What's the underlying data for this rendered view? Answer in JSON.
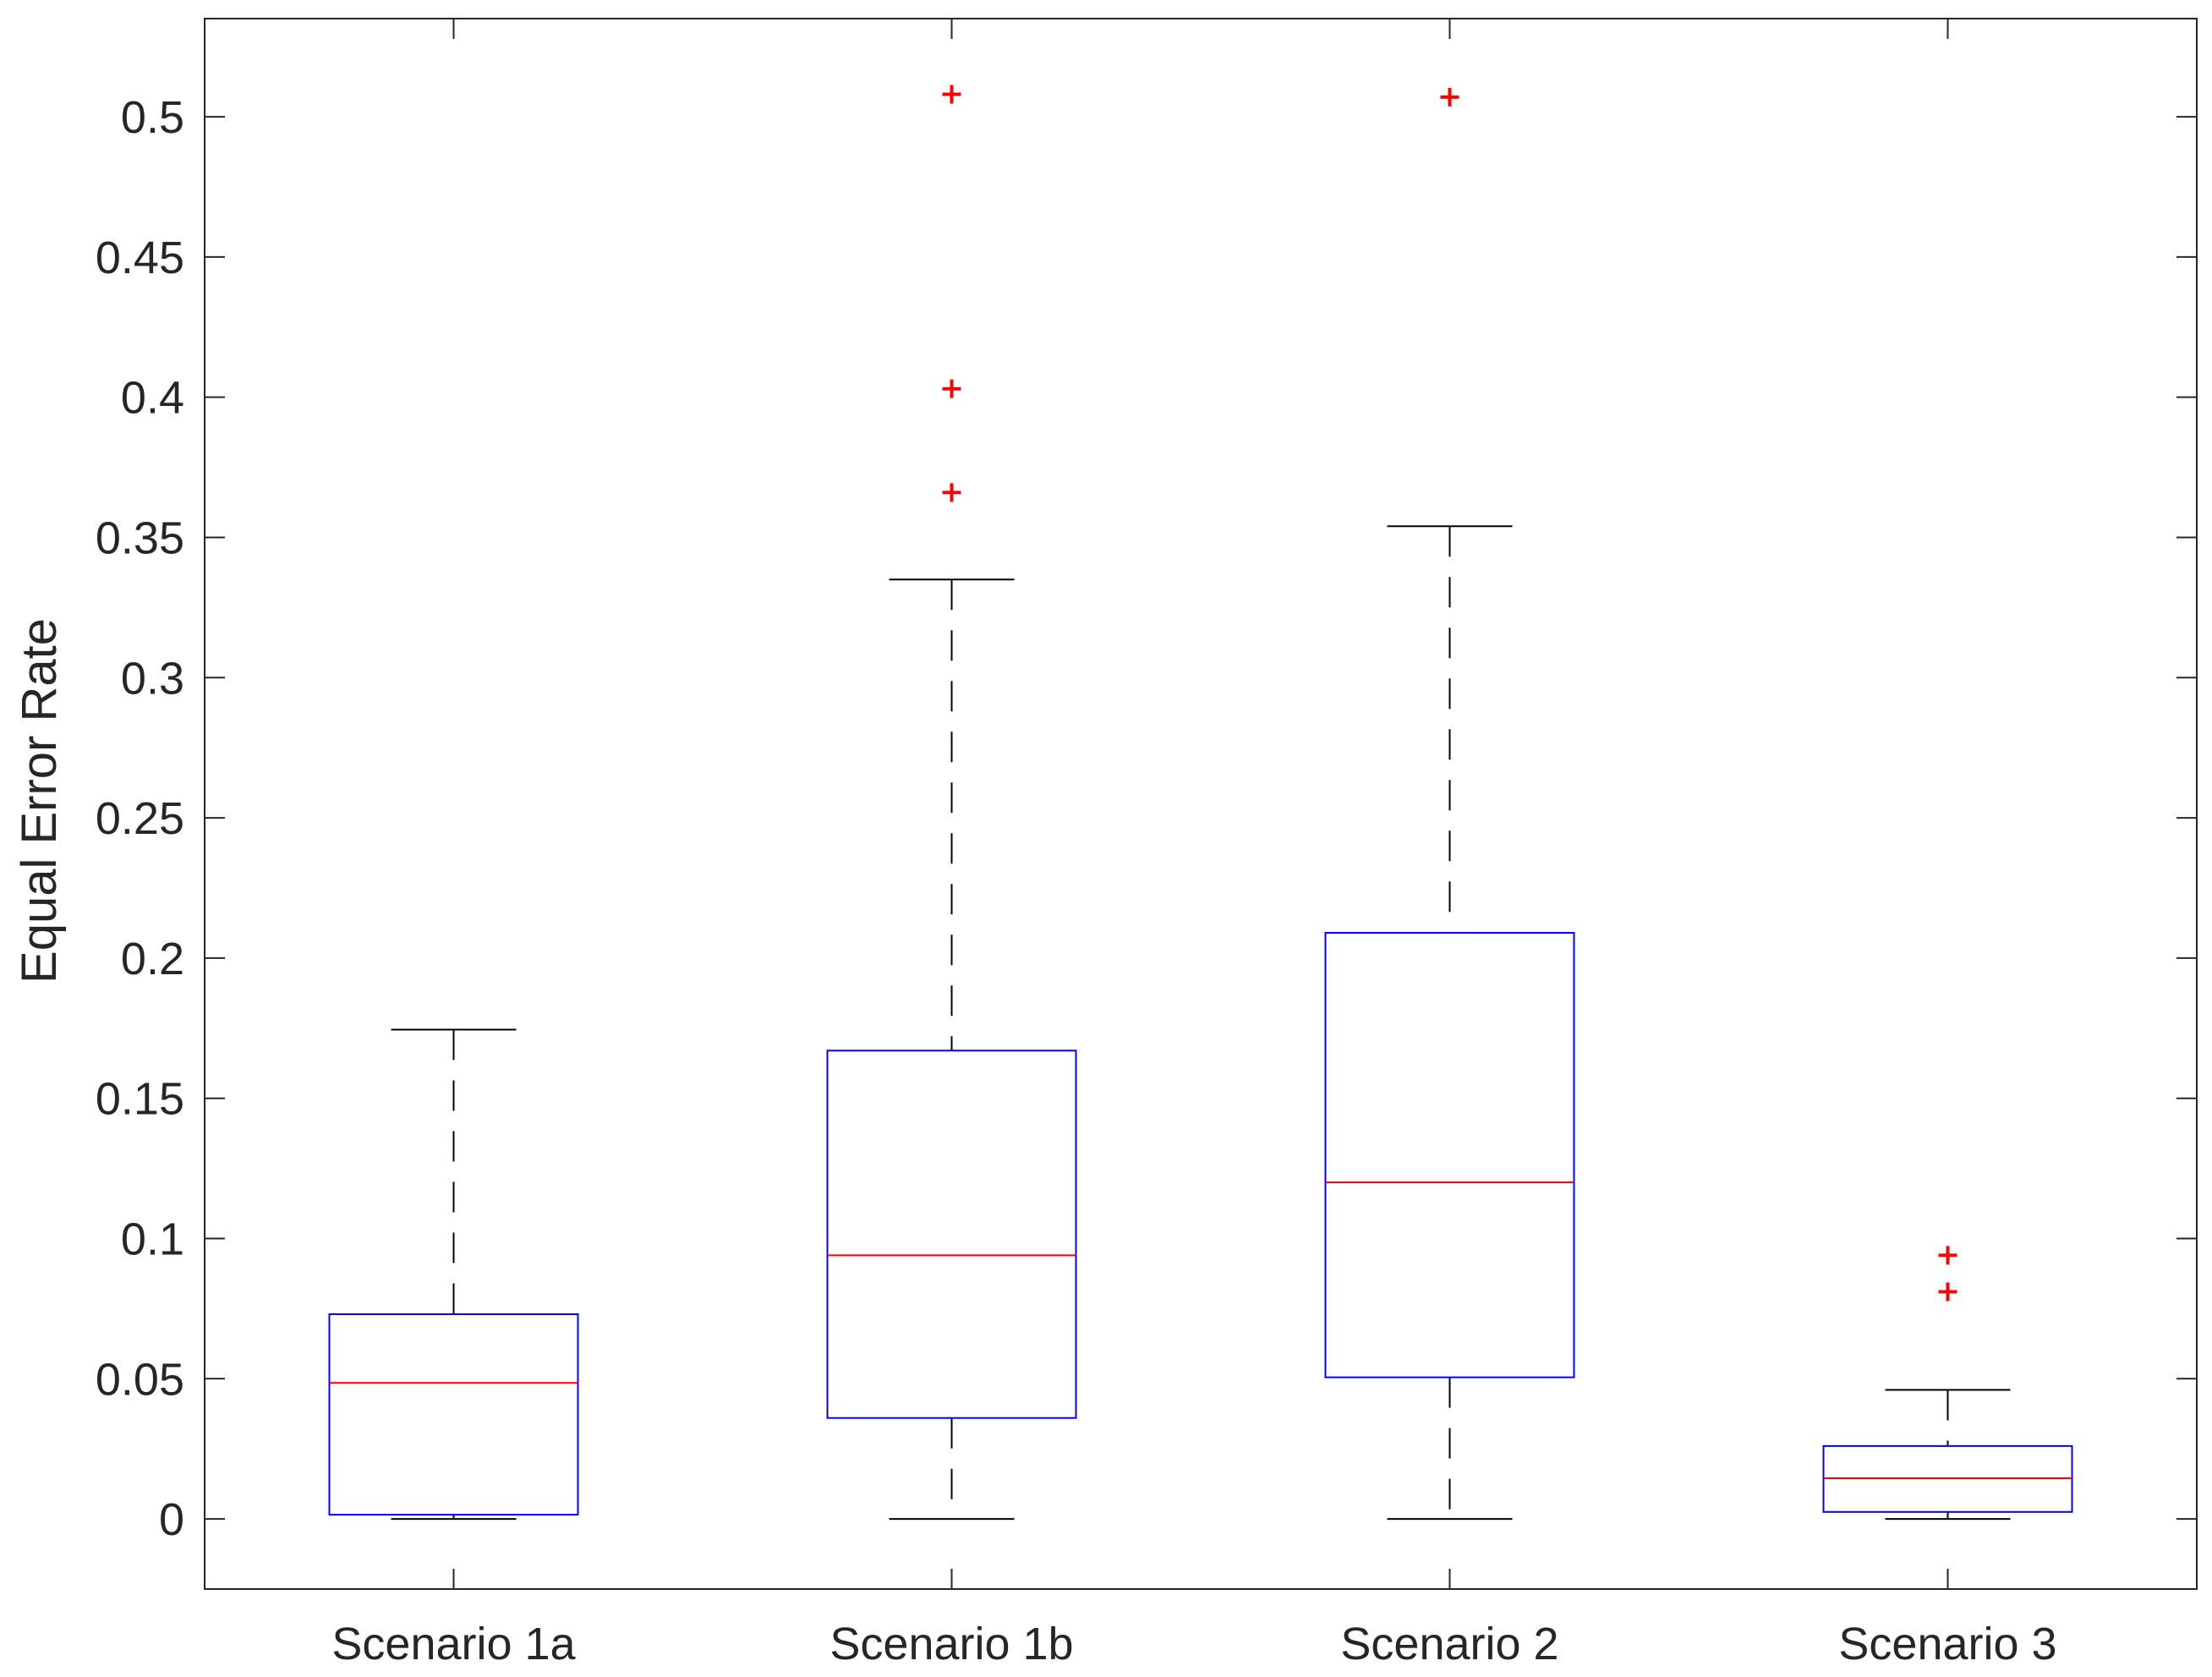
{
  "chart_data": {
    "type": "boxplot",
    "title": "",
    "xlabel": "",
    "ylabel": "Equal Error Rate",
    "ylim": [
      -0.025,
      0.535
    ],
    "yticks": [
      0,
      0.05,
      0.1,
      0.15,
      0.2,
      0.25,
      0.3,
      0.35,
      0.4,
      0.45,
      0.5
    ],
    "ytick_labels": [
      "0",
      "0.05",
      "0.1",
      "0.15",
      "0.2",
      "0.25",
      "0.3",
      "0.35",
      "0.4",
      "0.45",
      "0.5"
    ],
    "grid": false,
    "categories": [
      "Scenario 1a",
      "Scenario 1b",
      "Scenario 2",
      "Scenario 3"
    ],
    "boxes": [
      {
        "name": "Scenario 1a",
        "whisker_low": 0.0,
        "q1": 0.0015,
        "median": 0.0485,
        "q3": 0.073,
        "whisker_high": 0.1745,
        "outliers": []
      },
      {
        "name": "Scenario 1b",
        "whisker_low": 0.0,
        "q1": 0.036,
        "median": 0.094,
        "q3": 0.167,
        "whisker_high": 0.335,
        "outliers": [
          0.366,
          0.403,
          0.508
        ]
      },
      {
        "name": "Scenario 2",
        "whisker_low": 0.0,
        "q1": 0.0505,
        "median": 0.12,
        "q3": 0.209,
        "whisker_high": 0.354,
        "outliers": [
          0.507
        ]
      },
      {
        "name": "Scenario 3",
        "whisker_low": 0.0,
        "q1": 0.0025,
        "median": 0.0145,
        "q3": 0.026,
        "whisker_high": 0.046,
        "outliers": [
          0.081,
          0.094
        ]
      }
    ],
    "colors": {
      "box": "#0000ff",
      "median": "#ff0000",
      "outlier": "#ff0000",
      "whisker": "#000000",
      "axis": "#262626"
    }
  }
}
